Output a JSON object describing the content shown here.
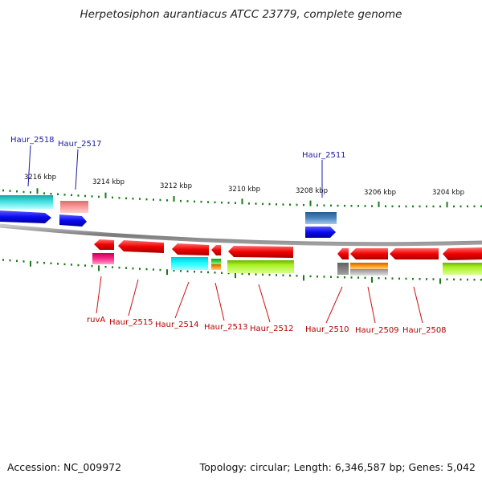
{
  "title": "Herpetosiphon aurantiacus ATCC 23779, complete genome",
  "footer": {
    "accession": "Accession: NC_009972",
    "summary": "Topology: circular; Length: 6,346,587 bp; Genes: 5,042"
  },
  "scale_labels": [
    "3216 kbp",
    "3214 kbp",
    "3212 kbp",
    "3210 kbp",
    "3208 kbp",
    "3206 kbp",
    "3204 kbp"
  ],
  "labels_above": [
    "Haur_2518",
    "Haur_2517",
    "Haur_2511"
  ],
  "labels_below": [
    "ruvA",
    "Haur_2515",
    "Haur_2514",
    "Haur_2513",
    "Haur_2512",
    "Haur_2510",
    "Haur_2509",
    "Haur_2508"
  ],
  "colors": {
    "forward": "#0b0bf0",
    "reverse": "#f20000",
    "backbone": "#8a8a8a",
    "ticks": "#1a7a1a"
  }
}
